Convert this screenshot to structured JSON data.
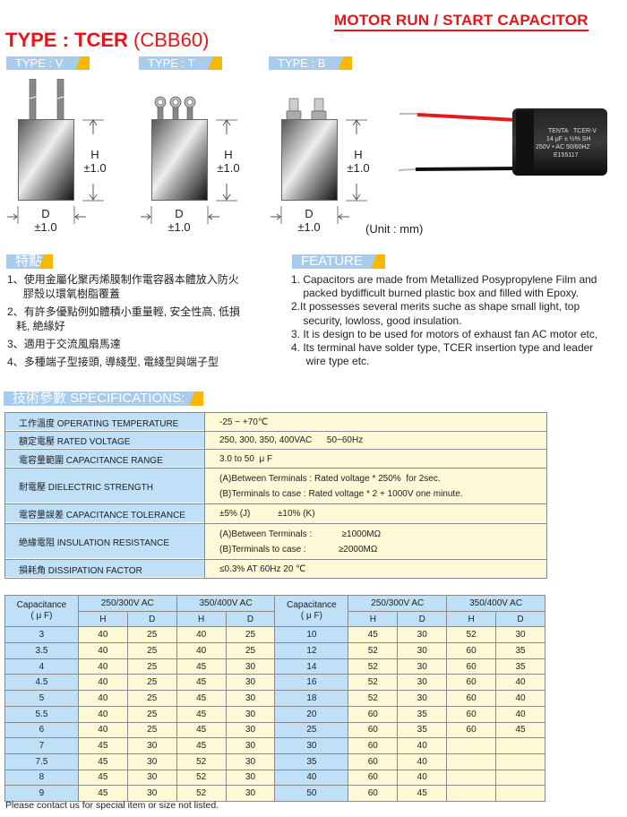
{
  "header": {
    "doc_title": "MOTOR RUN / START CAPACITOR",
    "type_bold": "TYPE : TCER",
    "type_suffix": "(CBB60)"
  },
  "types": [
    {
      "label": "TYPE : V",
      "h": "H",
      "tol": "±1.0",
      "d": "D"
    },
    {
      "label": "TYPE : T",
      "h": "H",
      "tol": "±1.0",
      "d": "D"
    },
    {
      "label": "TYPE : B",
      "h": "H",
      "tol": "±1.0",
      "d": "D"
    }
  ],
  "photo": {
    "brand": "TENTA",
    "model": "TCER-V",
    "line2": "14 μF ± ½% SH",
    "line3": "250V • AC 50/60HZ",
    "cert": "E155117",
    "wire_colors": [
      "#e41b1b",
      "#111111"
    ]
  },
  "unit": "(Unit : mm)",
  "features_cn": {
    "title": "特點:",
    "items": [
      {
        "num": "1、",
        "text": "使用金屬化聚丙烯膜制作電容器本體放入防火",
        "cont": "膠殼以環氧樹脂覆蓋"
      },
      {
        "num": "2、",
        "text": "有許多優點例如體積小重量輕, 安全性高, 低損",
        "cont": "耗, 絶緣好"
      },
      {
        "num": "3、",
        "text": "適用于交流風扇馬達",
        "cont": ""
      },
      {
        "num": "4、",
        "text": "多種端子型接頭, 導綫型, 電綫型與端子型",
        "cont": ""
      }
    ]
  },
  "features_en": {
    "title": "FEATURE",
    "lines": [
      "1. Capacitors are made from Metallized Posypropylene Film and",
      "    packed bydifficult burned plastic box and filled with Epoxy.",
      "2.It possesses several merits suche as shape small light, top",
      "    security, lowloss, good insulation.",
      "3. It is design to be used for motors of exhaust fan AC motor etc,",
      "4. Its terminal have solder type, TCER insertion type and leader",
      "     wire type etc."
    ]
  },
  "specs": {
    "title": "技術參數  SPECIFICATIONS:",
    "rows": [
      {
        "label": "工作溫度   OPERATING TEMPERATURE",
        "values": [
          "-25 ~ +70℃"
        ]
      },
      {
        "label": "額定電壓   RATED VOLTAGE",
        "values": [
          "250, 300, 350, 400VAC      50~60Hz"
        ]
      },
      {
        "label": "電容量範圍   CAPACITANCE RANGE",
        "values": [
          "3.0 to 50  μ F"
        ]
      },
      {
        "label": "耐電壓   DIELECTRIC STRENGTH",
        "values": [
          "(A)Between Terminals : Rated voltage * 250%  for 2sec.",
          "(B)Terminals to case : Rated voltage * 2 + 1000V one minute."
        ]
      },
      {
        "label": "電容量誤差   CAPACITANCE TOLERANCE",
        "values": [
          "±5% (J)           ±10% (K)"
        ]
      },
      {
        "label": "絶緣電阻   INSULATION RESISTANCE",
        "values": [
          "(A)Between Terminals :            ≥1000MΩ",
          "(B)Terminals to case :             ≥2000MΩ"
        ]
      },
      {
        "label": "損耗角   DISSIPATION FACTOR",
        "values": [
          "≤0.3% AT 60Hz 20 ℃"
        ]
      }
    ]
  },
  "dimensions": {
    "cap_header": "Capacitance",
    "cap_unit": "( μ F)",
    "groups": [
      "250/300V AC",
      "350/400V AC"
    ],
    "sub": [
      "H",
      "D"
    ],
    "left": [
      [
        "3",
        "40",
        "25",
        "40",
        "25"
      ],
      [
        "3.5",
        "40",
        "25",
        "40",
        "25"
      ],
      [
        "4",
        "40",
        "25",
        "45",
        "30"
      ],
      [
        "4.5",
        "40",
        "25",
        "45",
        "30"
      ],
      [
        "5",
        "40",
        "25",
        "45",
        "30"
      ],
      [
        "5.5",
        "40",
        "25",
        "45",
        "30"
      ],
      [
        "6",
        "40",
        "25",
        "45",
        "30"
      ],
      [
        "7",
        "45",
        "30",
        "45",
        "30"
      ],
      [
        "7.5",
        "45",
        "30",
        "52",
        "30"
      ],
      [
        "8",
        "45",
        "30",
        "52",
        "30"
      ],
      [
        "9",
        "45",
        "30",
        "52",
        "30"
      ]
    ],
    "right": [
      [
        "10",
        "45",
        "30",
        "52",
        "30"
      ],
      [
        "12",
        "52",
        "30",
        "60",
        "35"
      ],
      [
        "14",
        "52",
        "30",
        "60",
        "35"
      ],
      [
        "16",
        "52",
        "30",
        "60",
        "40"
      ],
      [
        "18",
        "52",
        "30",
        "60",
        "40"
      ],
      [
        "20",
        "60",
        "35",
        "60",
        "40"
      ],
      [
        "25",
        "60",
        "35",
        "60",
        "45"
      ],
      [
        "30",
        "60",
        "40",
        "",
        ""
      ],
      [
        "35",
        "60",
        "40",
        "",
        ""
      ],
      [
        "40",
        "60",
        "40",
        "",
        ""
      ],
      [
        "50",
        "60",
        "45",
        "",
        ""
      ]
    ]
  },
  "footer_note": "Please contact us for special item or size not listed.",
  "colors": {
    "accent_red": "#e8141b",
    "label_blue": "#a9cbec",
    "tag_orange": "#f8b800",
    "cell_blue": "#bfe0f6",
    "cell_yellow": "#fdf8d6"
  }
}
